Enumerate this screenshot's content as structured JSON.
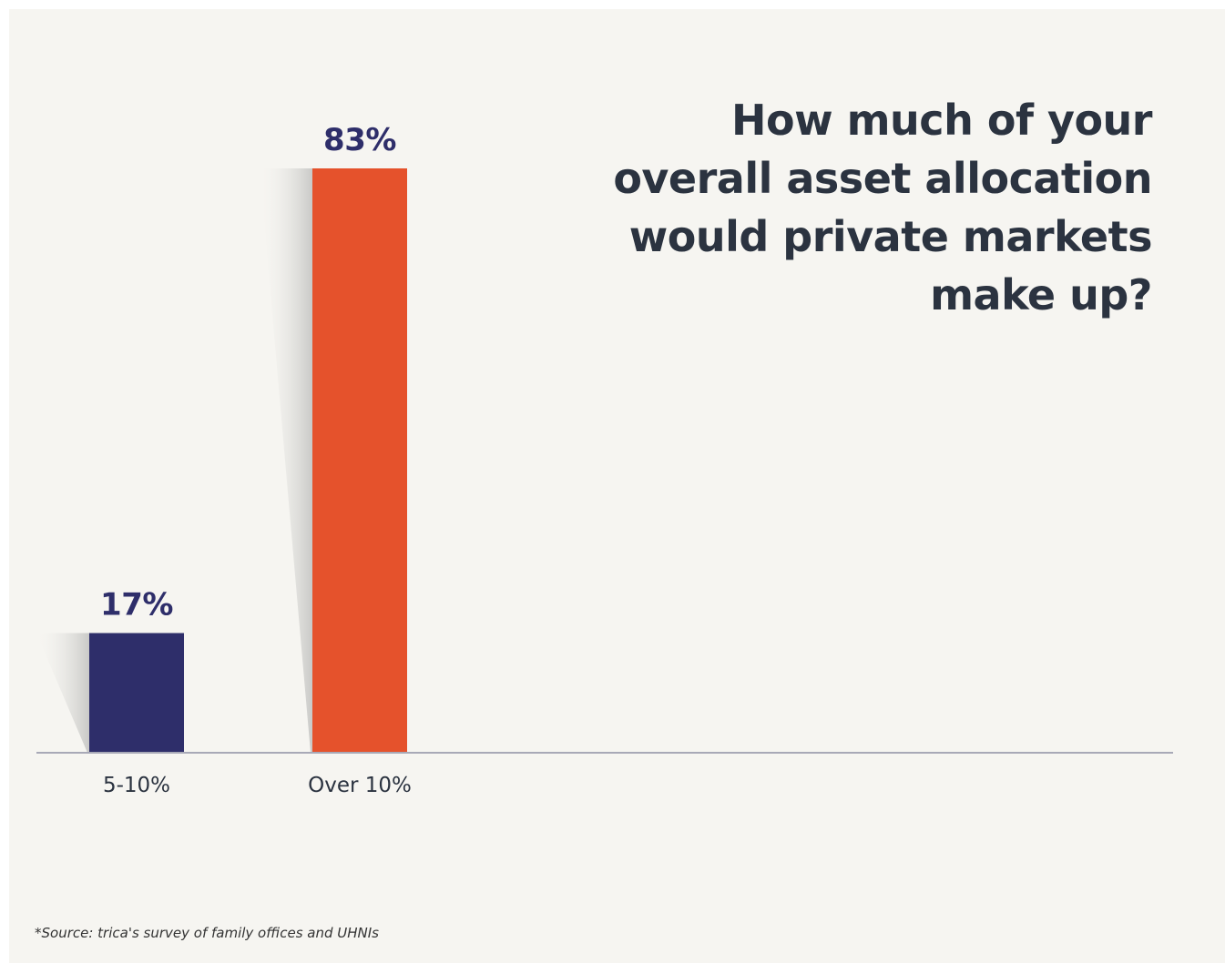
{
  "title_lines": [
    "How much of your",
    "overall asset allocation",
    "would private markets",
    "make up?"
  ],
  "source_note": "*Source: trica's survey of family offices and UHNIs",
  "colors": {
    "background": "#f6f5f1",
    "title": "#2b3340",
    "label_value": "#2e2e6a",
    "axis": "#a8a9b7"
  },
  "chart_data": {
    "type": "bar",
    "title": "How much of your overall asset allocation would private markets make up?",
    "xlabel": "",
    "ylabel": "",
    "ylim": [
      0,
      83
    ],
    "grid": false,
    "legend": "none",
    "categories": [
      "5-10%",
      "Over 10%"
    ],
    "values": [
      17,
      83
    ],
    "value_labels": [
      "17%",
      "83%"
    ],
    "bar_colors": [
      "#2e2e6a",
      "#e5522c"
    ]
  }
}
